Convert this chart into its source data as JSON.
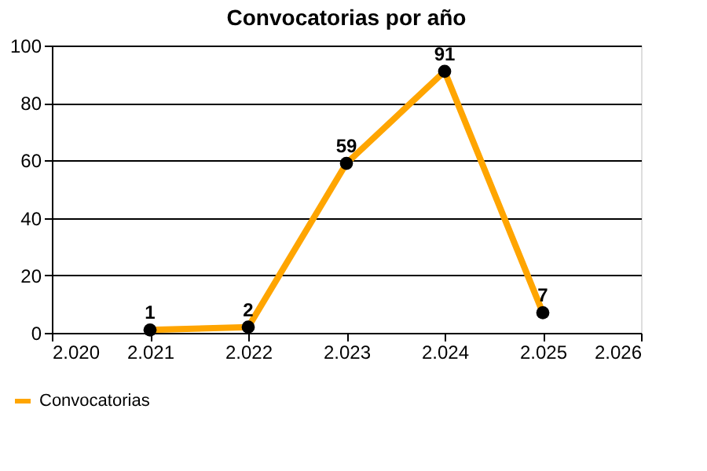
{
  "chart_data": {
    "type": "line",
    "title": "Convocatorias por año",
    "x": [
      2021,
      2022,
      2023,
      2024,
      2025
    ],
    "series": [
      {
        "name": "Convocatorias",
        "color": "#ffa500",
        "values": [
          1,
          2,
          59,
          91,
          7
        ]
      }
    ],
    "xlim": [
      2020,
      2026
    ],
    "xticks": [
      {
        "value": 2020,
        "label": "2.020"
      },
      {
        "value": 2021,
        "label": "2.021"
      },
      {
        "value": 2022,
        "label": "2.022"
      },
      {
        "value": 2023,
        "label": "2.023"
      },
      {
        "value": 2024,
        "label": "2.024"
      },
      {
        "value": 2025,
        "label": "2.025"
      },
      {
        "value": 2026,
        "label": "2.026"
      }
    ],
    "ylim": [
      0,
      100
    ],
    "yticks": [
      0,
      20,
      40,
      60,
      80,
      100
    ],
    "grid": "y",
    "legend": "bottom left",
    "marker": "circle",
    "line_style": "solid",
    "data_labels": true
  }
}
